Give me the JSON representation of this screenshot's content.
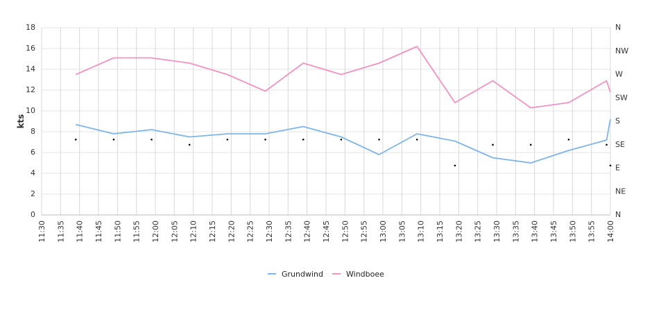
{
  "chart_data": {
    "type": "line",
    "ylabel": "kts",
    "ylim": [
      0,
      18
    ],
    "yticks": [
      "0",
      "2",
      "4",
      "6",
      "8",
      "10",
      "12",
      "14",
      "16",
      "18"
    ],
    "y2ticks": [
      "N",
      "NE",
      "E",
      "SE",
      "S",
      "SW",
      "W",
      "NW",
      "N"
    ],
    "xticks": [
      "11:30",
      "11:35",
      "11:40",
      "11:45",
      "11:50",
      "11:55",
      "12:00",
      "12:05",
      "12:10",
      "12:15",
      "12:20",
      "12:25",
      "12:30",
      "12:35",
      "12:40",
      "12:45",
      "12:50",
      "12:55",
      "13:00",
      "13:05",
      "13:10",
      "13:15",
      "13:20",
      "13:25",
      "13:30",
      "13:35",
      "13:40",
      "13:45",
      "13:50",
      "13:55",
      "14:00"
    ],
    "xrange": [
      "11:30",
      "14:00"
    ],
    "grid": true,
    "legend_position": "bottom",
    "series": [
      {
        "name": "Grundwind",
        "color": "#7cb5ec",
        "points": [
          [
            "11:39",
            8.7
          ],
          [
            "11:49",
            7.8
          ],
          [
            "11:59",
            8.2
          ],
          [
            "12:09",
            7.5
          ],
          [
            "12:19",
            7.8
          ],
          [
            "12:29",
            7.8
          ],
          [
            "12:39",
            8.5
          ],
          [
            "12:49",
            7.5
          ],
          [
            "12:59",
            5.8
          ],
          [
            "13:09",
            7.8
          ],
          [
            "13:19",
            7.1
          ],
          [
            "13:29",
            5.5
          ],
          [
            "13:39",
            5.0
          ],
          [
            "13:49",
            6.2
          ],
          [
            "13:59",
            7.2
          ],
          [
            "14:00",
            9.2
          ]
        ]
      },
      {
        "name": "Windboee",
        "color": "#f491c1",
        "points": [
          [
            "11:39",
            13.5
          ],
          [
            "11:49",
            15.1
          ],
          [
            "11:59",
            15.1
          ],
          [
            "12:09",
            14.6
          ],
          [
            "12:19",
            13.5
          ],
          [
            "12:29",
            11.9
          ],
          [
            "12:39",
            14.6
          ],
          [
            "12:49",
            13.5
          ],
          [
            "12:59",
            14.6
          ],
          [
            "13:09",
            16.2
          ],
          [
            "13:19",
            10.8
          ],
          [
            "13:29",
            12.9
          ],
          [
            "13:39",
            10.3
          ],
          [
            "13:49",
            10.8
          ],
          [
            "13:59",
            12.9
          ],
          [
            "14:00",
            11.8
          ]
        ]
      }
    ],
    "direction": {
      "name": "Direction",
      "color": "#000000",
      "points": [
        [
          "11:39",
          "SE"
        ],
        [
          "11:49",
          "SE"
        ],
        [
          "11:59",
          "SE"
        ],
        [
          "12:09",
          "SE"
        ],
        [
          "12:19",
          "SE"
        ],
        [
          "12:29",
          "SE"
        ],
        [
          "12:39",
          "SE"
        ],
        [
          "12:49",
          "SE"
        ],
        [
          "12:59",
          "SE"
        ],
        [
          "13:09",
          "SE"
        ],
        [
          "13:19",
          "E"
        ],
        [
          "13:29",
          "SE"
        ],
        [
          "13:39",
          "SE"
        ],
        [
          "13:49",
          "SE"
        ],
        [
          "13:59",
          "SE"
        ],
        [
          "14:00",
          "E"
        ]
      ],
      "values_deg": [
        145,
        145,
        145,
        135,
        145,
        145,
        145,
        145,
        145,
        145,
        95,
        135,
        135,
        145,
        135,
        95
      ]
    }
  }
}
